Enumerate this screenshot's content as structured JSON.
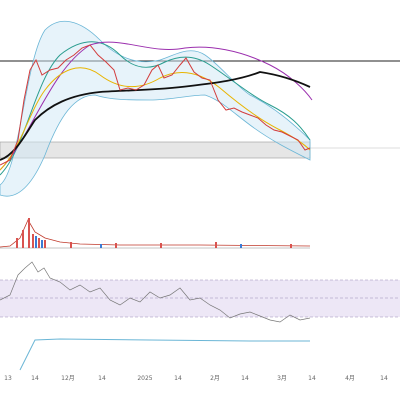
{
  "x_axis": {
    "labels": [
      "13",
      "14",
      "12月",
      "14",
      "2025",
      "14",
      "2月",
      "14",
      "3月",
      "14",
      "4月",
      "14"
    ]
  }
}
